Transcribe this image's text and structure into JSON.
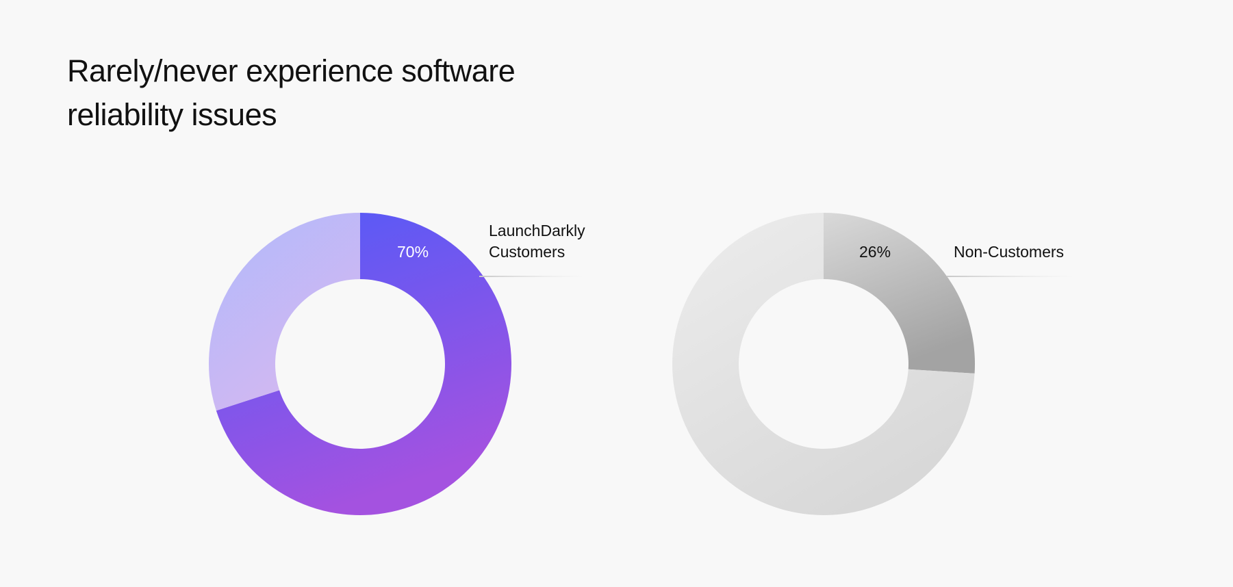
{
  "title": "Rarely/never experience software reliability issues",
  "chart_data": [
    {
      "type": "pie",
      "series_name": "LaunchDarkly Customers",
      "label_lines": [
        "LaunchDarkly",
        "Customers"
      ],
      "slices": [
        {
          "label": "",
          "value": 70,
          "display": "70%",
          "highlight": true
        },
        {
          "label": "",
          "value": 30,
          "display": "",
          "highlight": false
        }
      ],
      "colors": {
        "highlight_start": "#4f5bf9",
        "highlight_end": "#a452e0",
        "rest_start": "#b3b9fb",
        "rest_end": "#d8b8ef",
        "pct_text": "#ffffff"
      }
    },
    {
      "type": "pie",
      "series_name": "Non-Customers",
      "label_lines": [
        "Non-Customers"
      ],
      "slices": [
        {
          "label": "",
          "value": 26,
          "display": "26%",
          "highlight": true
        },
        {
          "label": "",
          "value": 74,
          "display": "",
          "highlight": false
        }
      ],
      "colors": {
        "highlight_start": "#d9d9d9",
        "highlight_end": "#a3a3a3",
        "rest_start": "#ebebeb",
        "rest_end": "#d6d6d6",
        "pct_text": "#111111"
      }
    }
  ]
}
